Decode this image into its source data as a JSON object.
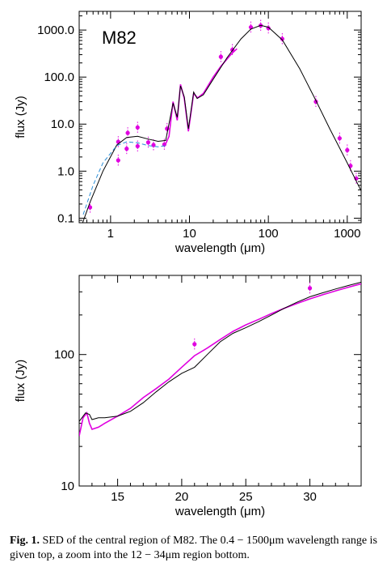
{
  "caption": {
    "label": "Fig. 1.",
    "text": "SED of the central region of M82. The 0.4 − 1500μm wavelength range is given top, a zoom into the 12 − 34μm region bottom."
  },
  "colors": {
    "data": "#e000e0",
    "model": "#000000",
    "model_alt": "#2a8ed8"
  },
  "chart_data": [
    {
      "type": "scatter",
      "title": "M82",
      "xlabel": "wavelength (μm)",
      "ylabel": "flux (Jy)",
      "xscale": "log",
      "yscale": "log",
      "xlim": [
        0.4,
        1500
      ],
      "ylim": [
        0.08,
        2500
      ],
      "xticks": [
        1,
        10,
        100,
        1000
      ],
      "xtick_labels": [
        "1",
        "10",
        "100",
        "1000"
      ],
      "yticks": [
        0.1,
        1,
        10,
        100,
        1000
      ],
      "ytick_labels": [
        "0.1",
        "1.0",
        "10.0",
        "100.0",
        "1000.0"
      ],
      "series": [
        {
          "kind": "photometry",
          "points": [
            {
              "x": 0.55,
              "y": 0.17
            },
            {
              "x": 1.25,
              "y": 1.7
            },
            {
              "x": 1.25,
              "y": 4.2
            },
            {
              "x": 1.6,
              "y": 3.0
            },
            {
              "x": 1.65,
              "y": 6.5
            },
            {
              "x": 2.2,
              "y": 3.4
            },
            {
              "x": 2.2,
              "y": 8.5
            },
            {
              "x": 3.0,
              "y": 4.1
            },
            {
              "x": 3.5,
              "y": 3.6
            },
            {
              "x": 4.8,
              "y": 3.7
            },
            {
              "x": 5.2,
              "y": 8.0
            },
            {
              "x": 60,
              "y": 1150
            },
            {
              "x": 80,
              "y": 1250
            },
            {
              "x": 100,
              "y": 1100
            },
            {
              "x": 150,
              "y": 650
            },
            {
              "x": 400,
              "y": 30
            },
            {
              "x": 800,
              "y": 5
            },
            {
              "x": 1000,
              "y": 2.8
            },
            {
              "x": 1100,
              "y": 1.3
            },
            {
              "x": 1300,
              "y": 0.7
            },
            {
              "x": 25,
              "y": 270
            },
            {
              "x": 35,
              "y": 380
            }
          ]
        },
        {
          "kind": "spectrum",
          "points": [
            {
              "x": 5.0,
              "y": 3.8
            },
            {
              "x": 5.5,
              "y": 5.5
            },
            {
              "x": 6.2,
              "y": 30
            },
            {
              "x": 7.0,
              "y": 12
            },
            {
              "x": 7.7,
              "y": 70
            },
            {
              "x": 8.6,
              "y": 35
            },
            {
              "x": 9.7,
              "y": 7
            },
            {
              "x": 11.3,
              "y": 45
            },
            {
              "x": 12.7,
              "y": 36
            },
            {
              "x": 15,
              "y": 45
            },
            {
              "x": 20,
              "y": 100
            },
            {
              "x": 25,
              "y": 170
            },
            {
              "x": 34,
              "y": 310
            },
            {
              "x": 40,
              "y": 400
            }
          ]
        },
        {
          "kind": "model",
          "points": [
            {
              "x": 0.4,
              "y": 0.05
            },
            {
              "x": 0.55,
              "y": 0.22
            },
            {
              "x": 0.8,
              "y": 1.0
            },
            {
              "x": 1.2,
              "y": 3.6
            },
            {
              "x": 1.6,
              "y": 5.2
            },
            {
              "x": 2.2,
              "y": 5.5
            },
            {
              "x": 3.0,
              "y": 4.8
            },
            {
              "x": 4.0,
              "y": 4.3
            },
            {
              "x": 5.0,
              "y": 4.5
            },
            {
              "x": 6.2,
              "y": 28
            },
            {
              "x": 7.0,
              "y": 14
            },
            {
              "x": 7.7,
              "y": 65
            },
            {
              "x": 8.6,
              "y": 38
            },
            {
              "x": 9.7,
              "y": 8
            },
            {
              "x": 11.3,
              "y": 48
            },
            {
              "x": 12.5,
              "y": 35
            },
            {
              "x": 15,
              "y": 42
            },
            {
              "x": 20,
              "y": 90
            },
            {
              "x": 30,
              "y": 260
            },
            {
              "x": 45,
              "y": 650
            },
            {
              "x": 60,
              "y": 1050
            },
            {
              "x": 80,
              "y": 1260
            },
            {
              "x": 100,
              "y": 1150
            },
            {
              "x": 150,
              "y": 620
            },
            {
              "x": 250,
              "y": 150
            },
            {
              "x": 400,
              "y": 32
            },
            {
              "x": 600,
              "y": 8
            },
            {
              "x": 1000,
              "y": 1.5
            },
            {
              "x": 1500,
              "y": 0.38
            }
          ]
        },
        {
          "kind": "model-alt",
          "points": [
            {
              "x": 0.45,
              "y": 0.12
            },
            {
              "x": 0.6,
              "y": 0.5
            },
            {
              "x": 0.8,
              "y": 1.5
            },
            {
              "x": 1.2,
              "y": 3.5
            },
            {
              "x": 1.6,
              "y": 4.2
            },
            {
              "x": 2.2,
              "y": 4.0
            },
            {
              "x": 3.0,
              "y": 3.5
            },
            {
              "x": 4.0,
              "y": 3.3
            },
            {
              "x": 5.0,
              "y": 3.5
            }
          ]
        }
      ]
    },
    {
      "type": "line",
      "title": "",
      "xlabel": "wavelength (μm)",
      "ylabel": "flux (Jy)",
      "xscale": "linear",
      "yscale": "log",
      "xlim": [
        12,
        34
      ],
      "ylim": [
        10,
        400
      ],
      "xticks": [
        15,
        20,
        25,
        30
      ],
      "xtick_labels": [
        "15",
        "20",
        "25",
        "30"
      ],
      "yticks": [
        10,
        100
      ],
      "ytick_labels": [
        "10",
        "100"
      ],
      "series": [
        {
          "kind": "spectrum",
          "points": [
            {
              "x": 12.0,
              "y": 24
            },
            {
              "x": 12.3,
              "y": 33
            },
            {
              "x": 12.6,
              "y": 36
            },
            {
              "x": 12.8,
              "y": 30
            },
            {
              "x": 13.0,
              "y": 27
            },
            {
              "x": 13.5,
              "y": 28
            },
            {
              "x": 14,
              "y": 30
            },
            {
              "x": 15,
              "y": 34
            },
            {
              "x": 16,
              "y": 39
            },
            {
              "x": 17,
              "y": 47
            },
            {
              "x": 18,
              "y": 55
            },
            {
              "x": 19,
              "y": 65
            },
            {
              "x": 20,
              "y": 80
            },
            {
              "x": 21,
              "y": 98
            },
            {
              "x": 22,
              "y": 112
            },
            {
              "x": 23,
              "y": 130
            },
            {
              "x": 24,
              "y": 150
            },
            {
              "x": 25,
              "y": 168
            },
            {
              "x": 26,
              "y": 185
            },
            {
              "x": 27,
              "y": 205
            },
            {
              "x": 28,
              "y": 225
            },
            {
              "x": 29,
              "y": 245
            },
            {
              "x": 30,
              "y": 265
            },
            {
              "x": 31,
              "y": 285
            },
            {
              "x": 32,
              "y": 305
            },
            {
              "x": 33,
              "y": 325
            },
            {
              "x": 34,
              "y": 345
            }
          ]
        },
        {
          "kind": "model",
          "points": [
            {
              "x": 12.0,
              "y": 31
            },
            {
              "x": 12.5,
              "y": 36
            },
            {
              "x": 12.8,
              "y": 35
            },
            {
              "x": 13.0,
              "y": 32
            },
            {
              "x": 13.5,
              "y": 33
            },
            {
              "x": 14,
              "y": 33
            },
            {
              "x": 15,
              "y": 34
            },
            {
              "x": 16,
              "y": 37
            },
            {
              "x": 17,
              "y": 43
            },
            {
              "x": 18,
              "y": 52
            },
            {
              "x": 19,
              "y": 62
            },
            {
              "x": 20,
              "y": 72
            },
            {
              "x": 21,
              "y": 80
            },
            {
              "x": 22,
              "y": 100
            },
            {
              "x": 23,
              "y": 125
            },
            {
              "x": 24,
              "y": 145
            },
            {
              "x": 25,
              "y": 160
            },
            {
              "x": 26,
              "y": 178
            },
            {
              "x": 27,
              "y": 200
            },
            {
              "x": 28,
              "y": 225
            },
            {
              "x": 29,
              "y": 250
            },
            {
              "x": 30,
              "y": 275
            },
            {
              "x": 31,
              "y": 295
            },
            {
              "x": 32,
              "y": 315
            },
            {
              "x": 33,
              "y": 335
            },
            {
              "x": 34,
              "y": 355
            }
          ]
        },
        {
          "kind": "photometry",
          "points": [
            {
              "x": 21,
              "y": 120
            },
            {
              "x": 30,
              "y": 320
            }
          ]
        }
      ]
    }
  ]
}
